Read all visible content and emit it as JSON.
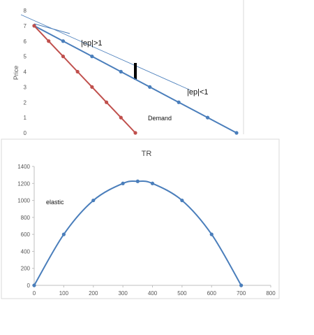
{
  "chart_data": [
    {
      "type": "line",
      "title": "",
      "xlabel": "",
      "ylabel": "Price",
      "ylim": [
        0,
        8
      ],
      "yticks": [
        "0",
        "1",
        "2",
        "3",
        "4",
        "5",
        "6",
        "7",
        "8"
      ],
      "grid": false,
      "series": [
        {
          "name": "",
          "color": "#4a7ebb",
          "x": [
            0,
            100,
            200,
            300,
            400,
            500,
            600,
            700
          ],
          "y": [
            7,
            6,
            5,
            4,
            3,
            2,
            1,
            0
          ]
        },
        {
          "name": "",
          "color": "#c0504d",
          "x": [
            0,
            50,
            100,
            150,
            200,
            250,
            300,
            350
          ],
          "y": [
            7,
            6,
            5,
            4,
            3,
            2,
            1,
            0
          ]
        }
      ],
      "annotations": [
        {
          "text": "|ep|>1"
        },
        {
          "text": "|ep|<1"
        },
        {
          "text": "Demand"
        }
      ]
    },
    {
      "type": "line",
      "title": "TR",
      "xlabel": "",
      "ylabel": "",
      "xlim": [
        0,
        800
      ],
      "ylim": [
        0,
        1400
      ],
      "xticks": [
        "0",
        "100",
        "200",
        "300",
        "400",
        "500",
        "600",
        "700",
        "800"
      ],
      "yticks": [
        "0",
        "200",
        "400",
        "600",
        "800",
        "1000",
        "1200",
        "1400"
      ],
      "grid": false,
      "series": [
        {
          "name": "",
          "color": "#4a7ebb",
          "x": [
            0,
            100,
            200,
            300,
            350,
            400,
            500,
            600,
            700
          ],
          "y": [
            0,
            600,
            1000,
            1200,
            1225,
            1200,
            1000,
            600,
            0
          ]
        }
      ],
      "annotations": [
        {
          "text": "elastic"
        }
      ]
    }
  ]
}
